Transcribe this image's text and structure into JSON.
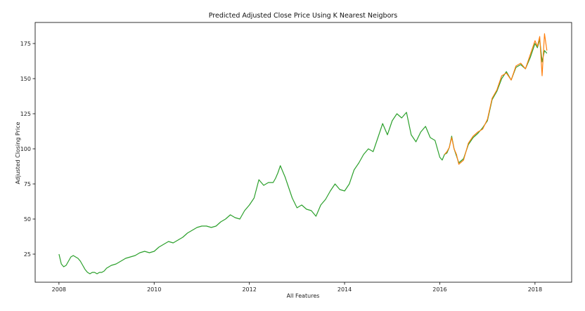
{
  "chart_data": {
    "type": "line",
    "title": "Predicted Adjusted Close Price Using K Nearest Neigbors",
    "xlabel": "All Features",
    "ylabel": "Adjusted Closing Price",
    "xlim": [
      2007.5,
      2018.77
    ],
    "ylim": [
      5,
      190
    ],
    "x_ticks": [
      2008,
      2010,
      2012,
      2014,
      2016,
      2018
    ],
    "y_ticks": [
      25,
      50,
      75,
      100,
      125,
      150,
      175
    ],
    "grid": false,
    "legend": "none",
    "colors": {
      "actual": "#2ca02c",
      "predicted": "#ff7f0e"
    },
    "series": [
      {
        "x": [
          2008.0,
          2008.05,
          2008.1,
          2008.15,
          2008.2,
          2008.25,
          2008.3,
          2008.35,
          2008.4,
          2008.45,
          2008.5,
          2008.55,
          2008.6,
          2008.65,
          2008.7,
          2008.75,
          2008.8,
          2008.85,
          2008.9,
          2008.95,
          2009.0,
          2009.1,
          2009.2,
          2009.3,
          2009.4,
          2009.5,
          2009.6,
          2009.7,
          2009.8,
          2009.9,
          2010.0,
          2010.1,
          2010.2,
          2010.3,
          2010.4,
          2010.5,
          2010.6,
          2010.7,
          2010.8,
          2010.9,
          2011.0,
          2011.1,
          2011.2,
          2011.3,
          2011.4,
          2011.5,
          2011.6,
          2011.7,
          2011.8,
          2011.9,
          2012.0,
          2012.1,
          2012.2,
          2012.3,
          2012.4,
          2012.5,
          2012.55,
          2012.6,
          2012.65,
          2012.7,
          2012.75,
          2012.8,
          2012.9,
          2013.0,
          2013.1,
          2013.2,
          2013.3,
          2013.4,
          2013.5,
          2013.6,
          2013.7,
          2013.8,
          2013.9,
          2014.0,
          2014.1,
          2014.2,
          2014.3,
          2014.4,
          2014.5,
          2014.6,
          2014.7,
          2014.8,
          2014.9,
          2015.0,
          2015.1,
          2015.2,
          2015.3,
          2015.4,
          2015.5,
          2015.6,
          2015.7,
          2015.8,
          2015.9,
          2016.0,
          2016.05,
          2016.1,
          2016.15,
          2016.2,
          2016.25,
          2016.3,
          2016.35,
          2016.4,
          2016.5,
          2016.6,
          2016.7,
          2016.8,
          2016.9,
          2017.0,
          2017.1,
          2017.2,
          2017.3,
          2017.4,
          2017.5,
          2017.6,
          2017.7,
          2017.8,
          2017.9,
          2018.0,
          2018.05,
          2018.1,
          2018.15,
          2018.2,
          2018.25
        ],
        "y": [
          25,
          18,
          16,
          17,
          20,
          23,
          24,
          23,
          22,
          20,
          17,
          14,
          12,
          11,
          12,
          12,
          11,
          12,
          12,
          13,
          15,
          17,
          18,
          20,
          22,
          23,
          24,
          26,
          27,
          26,
          27,
          30,
          32,
          34,
          33,
          35,
          37,
          40,
          42,
          44,
          45,
          45,
          44,
          45,
          48,
          50,
          53,
          51,
          50,
          56,
          60,
          65,
          78,
          74,
          76,
          76,
          79,
          83,
          88,
          84,
          80,
          75,
          65,
          58,
          60,
          57,
          56,
          52,
          60,
          64,
          70,
          75,
          71,
          70,
          75,
          85,
          90,
          96,
          100,
          98,
          108,
          118,
          110,
          120,
          125,
          122,
          126,
          110,
          105,
          112,
          116,
          108,
          106,
          94,
          92,
          96,
          97,
          101,
          109,
          100,
          95,
          90,
          93,
          103,
          108,
          111,
          115,
          120,
          135,
          141,
          150,
          155,
          149,
          158,
          160,
          157,
          165,
          175,
          172,
          178,
          162,
          170,
          168
        ]
      },
      {
        "x": [
          2016.1,
          2016.15,
          2016.2,
          2016.25,
          2016.3,
          2016.35,
          2016.4,
          2016.5,
          2016.6,
          2016.7,
          2016.8,
          2016.9,
          2017.0,
          2017.1,
          2017.2,
          2017.3,
          2017.4,
          2017.5,
          2017.6,
          2017.7,
          2017.8,
          2017.9,
          2018.0,
          2018.05,
          2018.1,
          2018.15,
          2018.2,
          2018.25
        ],
        "y": [
          96,
          98,
          101,
          108,
          100,
          96,
          89,
          92,
          104,
          109,
          112,
          114,
          121,
          136,
          142,
          152,
          154,
          149,
          159,
          161,
          157,
          167,
          177,
          173,
          180,
          152,
          182,
          170
        ]
      }
    ]
  }
}
